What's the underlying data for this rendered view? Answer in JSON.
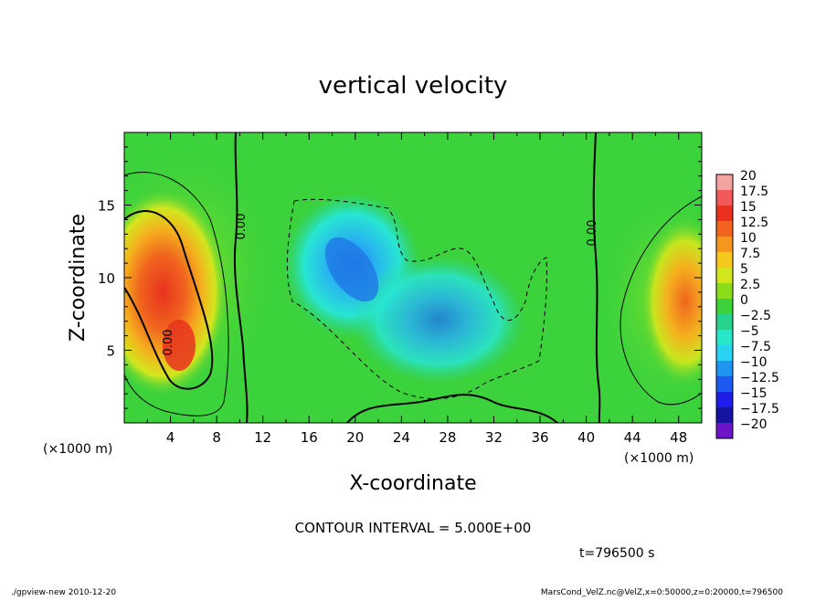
{
  "chart_data": {
    "type": "heatmap",
    "title": "vertical velocity",
    "xlabel": "X-coordinate",
    "ylabel": "Z-coordinate",
    "x_unit": "(×1000 m)",
    "y_unit": "(×1000 m)",
    "xlim": [
      0,
      50
    ],
    "ylim": [
      0,
      20
    ],
    "x_ticks": [
      "4",
      "8",
      "12",
      "16",
      "20",
      "24",
      "28",
      "32",
      "36",
      "40",
      "44",
      "48"
    ],
    "y_ticks": [
      "5",
      "10",
      "15"
    ],
    "colorbar_labels": [
      "20",
      "17.5",
      "15",
      "12.5",
      "10",
      "7.5",
      "5",
      "2.5",
      "0",
      "−2.5",
      "−5",
      "−7.5",
      "−10",
      "−12.5",
      "−15",
      "−17.5",
      "−20"
    ],
    "colorbar_colors": [
      "#f4a3a3",
      "#f05a5a",
      "#e8321e",
      "#f0641e",
      "#f5961e",
      "#f5c81e",
      "#d2e61e",
      "#8cdc1e",
      "#3cd23c",
      "#28d28c",
      "#28e6c8",
      "#28d2f0",
      "#1e96f0",
      "#1e5af0",
      "#1e1ee6",
      "#1414a0",
      "#6e14c8"
    ],
    "contour_labels": [
      "0.00",
      "0.00",
      "0.00"
    ],
    "contour_interval": "CONTOUR INTERVAL = 5.000E+00",
    "time": "t=796500  s",
    "footer_left": "./gpview-new   2010-12-20",
    "footer_right": "MarsCond_VelZ.nc@VelZ,x=0:50000,z=0:20000,t=796500",
    "features": [
      {
        "name": "left updraft",
        "x": 4,
        "z": 10,
        "max": 15
      },
      {
        "name": "right updraft",
        "x": 47,
        "z": 8,
        "max": 10
      },
      {
        "name": "central downdraft",
        "x": 20,
        "z": 10,
        "min": -10
      }
    ]
  }
}
